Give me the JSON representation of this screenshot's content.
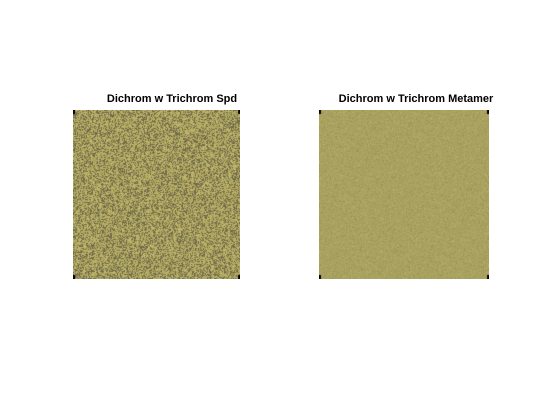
{
  "figure": {
    "background": "#ffffff",
    "panels": [
      {
        "title": "Dichrom w Trichrom Spd",
        "image_style": "noisy",
        "base_color": "#a9a05c",
        "dark_color": "#6f6a4a",
        "light_color": "#c1b66a"
      },
      {
        "title": "Dichrom w Trichrom Metamer",
        "image_style": "uniform",
        "base_color": "#a9a25f",
        "dark_color": "#9c955a",
        "light_color": "#b4ac66"
      }
    ]
  }
}
